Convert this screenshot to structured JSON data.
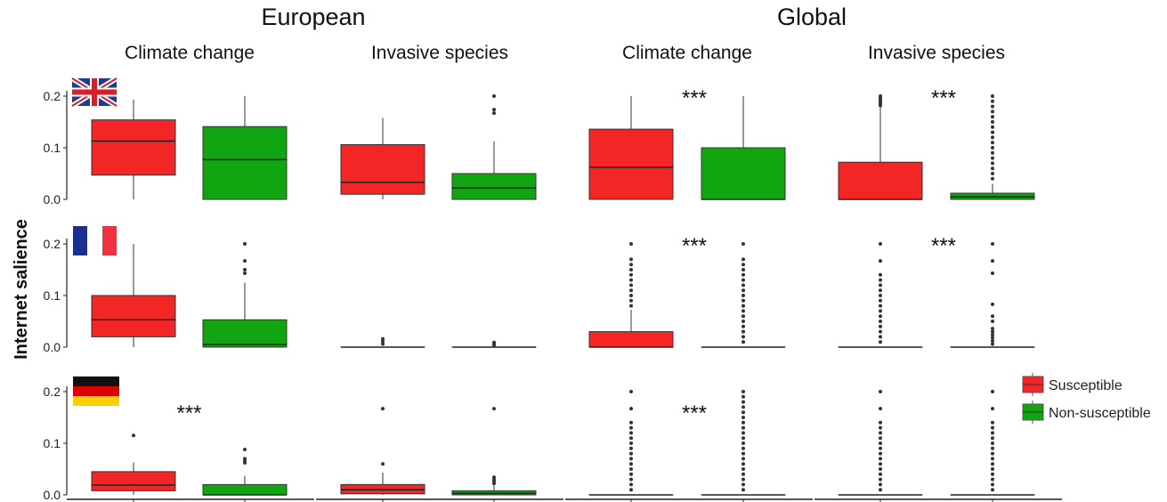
{
  "chart_data": {
    "type": "box",
    "title": "",
    "group_titles": [
      "European",
      "Global"
    ],
    "columns": [
      {
        "group": "European",
        "title": "Climate change"
      },
      {
        "group": "European",
        "title": "Invasive species"
      },
      {
        "group": "Global",
        "title": "Climate change"
      },
      {
        "group": "Global",
        "title": "Invasive species"
      }
    ],
    "rows": [
      {
        "country": "United Kingdom",
        "flag": "uk-flag-icon"
      },
      {
        "country": "France",
        "flag": "france-flag-icon"
      },
      {
        "country": "Germany",
        "flag": "germany-flag-icon"
      }
    ],
    "ylabel": "Internet salience",
    "ylim": [
      0,
      0.2
    ],
    "yticks": [
      "0.0",
      "0.1",
      "0.2"
    ],
    "legend": {
      "position": "right",
      "entries": [
        {
          "label": "Susceptible",
          "color": "#f42525"
        },
        {
          "label": "Non-susceptible",
          "color": "#11a611"
        }
      ]
    },
    "colors": {
      "Susceptible": "#f42525",
      "Non-susceptible": "#11a611"
    },
    "significance_marker": "***",
    "panels": [
      {
        "row": 0,
        "col": 0,
        "sig": false,
        "boxes": [
          {
            "series": "Susceptible",
            "q1": 0.047,
            "median": 0.113,
            "q3": 0.154,
            "whisker_low": 0.0,
            "whisker_high": 0.193,
            "outliers": []
          },
          {
            "series": "Non-susceptible",
            "q1": 0.0,
            "median": 0.077,
            "q3": 0.141,
            "whisker_low": 0.0,
            "whisker_high": 0.2,
            "outliers": []
          }
        ]
      },
      {
        "row": 0,
        "col": 1,
        "sig": false,
        "boxes": [
          {
            "series": "Susceptible",
            "q1": 0.01,
            "median": 0.033,
            "q3": 0.106,
            "whisker_low": 0.0,
            "whisker_high": 0.158,
            "outliers": []
          },
          {
            "series": "Non-susceptible",
            "q1": 0.0,
            "median": 0.022,
            "q3": 0.05,
            "whisker_low": 0.0,
            "whisker_high": 0.112,
            "outliers": [
              0.167,
              0.174,
              0.2
            ]
          }
        ]
      },
      {
        "row": 0,
        "col": 2,
        "sig": true,
        "boxes": [
          {
            "series": "Susceptible",
            "q1": 0.0,
            "median": 0.062,
            "q3": 0.136,
            "whisker_low": 0.0,
            "whisker_high": 0.2,
            "outliers": []
          },
          {
            "series": "Non-susceptible",
            "q1": 0.0,
            "median": 0.0,
            "q3": 0.1,
            "whisker_low": 0.0,
            "whisker_high": 0.2,
            "outliers": []
          }
        ]
      },
      {
        "row": 0,
        "col": 3,
        "sig": true,
        "boxes": [
          {
            "series": "Susceptible",
            "q1": 0.0,
            "median": 0.0,
            "q3": 0.072,
            "whisker_low": 0.0,
            "whisker_high": 0.18,
            "outliers": [
              0.182,
              0.186,
              0.19,
              0.194,
              0.198,
              0.2
            ]
          },
          {
            "series": "Non-susceptible",
            "q1": 0.0,
            "median": 0.005,
            "q3": 0.012,
            "whisker_low": 0.0,
            "whisker_high": 0.03,
            "outliers": [
              0.04,
              0.05,
              0.06,
              0.07,
              0.08,
              0.09,
              0.1,
              0.11,
              0.12,
              0.13,
              0.14,
              0.15,
              0.16,
              0.17,
              0.18,
              0.19,
              0.2
            ]
          }
        ]
      },
      {
        "row": 1,
        "col": 0,
        "sig": false,
        "boxes": [
          {
            "series": "Susceptible",
            "q1": 0.02,
            "median": 0.053,
            "q3": 0.1,
            "whisker_low": 0.0,
            "whisker_high": 0.2,
            "outliers": []
          },
          {
            "series": "Non-susceptible",
            "q1": 0.0,
            "median": 0.005,
            "q3": 0.053,
            "whisker_low": 0.0,
            "whisker_high": 0.125,
            "outliers": [
              0.143,
              0.15,
              0.167,
              0.2
            ]
          }
        ]
      },
      {
        "row": 1,
        "col": 1,
        "sig": false,
        "boxes": [
          {
            "series": "Susceptible",
            "q1": 0.0,
            "median": 0.0,
            "q3": 0.0,
            "whisker_low": 0.0,
            "whisker_high": 0.0,
            "outliers": [
              0.006,
              0.011,
              0.016
            ]
          },
          {
            "series": "Non-susceptible",
            "q1": 0.0,
            "median": 0.0,
            "q3": 0.0,
            "whisker_low": 0.0,
            "whisker_high": 0.0,
            "outliers": [
              0.003,
              0.006,
              0.009
            ]
          }
        ]
      },
      {
        "row": 1,
        "col": 2,
        "sig": true,
        "boxes": [
          {
            "series": "Susceptible",
            "q1": 0.0,
            "median": 0.0,
            "q3": 0.03,
            "whisker_low": 0.0,
            "whisker_high": 0.072,
            "outliers": [
              0.08,
              0.09,
              0.1,
              0.11,
              0.12,
              0.13,
              0.14,
              0.15,
              0.16,
              0.17,
              0.2
            ]
          },
          {
            "series": "Non-susceptible",
            "q1": 0.0,
            "median": 0.0,
            "q3": 0.0,
            "whisker_low": 0.0,
            "whisker_high": 0.0,
            "outliers": [
              0.01,
              0.02,
              0.03,
              0.04,
              0.05,
              0.06,
              0.07,
              0.08,
              0.09,
              0.1,
              0.11,
              0.12,
              0.13,
              0.14,
              0.15,
              0.16,
              0.17,
              0.2
            ]
          }
        ]
      },
      {
        "row": 1,
        "col": 3,
        "sig": true,
        "boxes": [
          {
            "series": "Susceptible",
            "q1": 0.0,
            "median": 0.0,
            "q3": 0.0,
            "whisker_low": 0.0,
            "whisker_high": 0.0,
            "outliers": [
              0.01,
              0.02,
              0.03,
              0.04,
              0.05,
              0.06,
              0.07,
              0.08,
              0.09,
              0.1,
              0.11,
              0.12,
              0.13,
              0.14,
              0.167,
              0.2
            ]
          },
          {
            "series": "Non-susceptible",
            "q1": 0.0,
            "median": 0.0,
            "q3": 0.0,
            "whisker_low": 0.0,
            "whisker_high": 0.0,
            "outliers": [
              0.006,
              0.012,
              0.018,
              0.024,
              0.03,
              0.036,
              0.05,
              0.06,
              0.083,
              0.143,
              0.167,
              0.2
            ]
          }
        ]
      },
      {
        "row": 2,
        "col": 0,
        "sig": true,
        "boxes": [
          {
            "series": "Susceptible",
            "q1": 0.008,
            "median": 0.019,
            "q3": 0.045,
            "whisker_low": 0.0,
            "whisker_high": 0.063,
            "outliers": [
              0.115
            ]
          },
          {
            "series": "Non-susceptible",
            "q1": 0.0,
            "median": 0.0,
            "q3": 0.02,
            "whisker_low": 0.0,
            "whisker_high": 0.037,
            "outliers": [
              0.062,
              0.066,
              0.07,
              0.088
            ]
          }
        ]
      },
      {
        "row": 2,
        "col": 1,
        "sig": false,
        "boxes": [
          {
            "series": "Susceptible",
            "q1": 0.002,
            "median": 0.01,
            "q3": 0.02,
            "whisker_low": 0.0,
            "whisker_high": 0.043,
            "outliers": [
              0.06,
              0.167
            ]
          },
          {
            "series": "Non-susceptible",
            "q1": 0.0,
            "median": 0.003,
            "q3": 0.008,
            "whisker_low": 0.0,
            "whisker_high": 0.018,
            "outliers": [
              0.022,
              0.026,
              0.03,
              0.034,
              0.167
            ]
          }
        ]
      },
      {
        "row": 2,
        "col": 2,
        "sig": true,
        "boxes": [
          {
            "series": "Susceptible",
            "q1": 0.0,
            "median": 0.0,
            "q3": 0.0,
            "whisker_low": 0.0,
            "whisker_high": 0.0,
            "outliers": [
              0.01,
              0.02,
              0.03,
              0.04,
              0.05,
              0.06,
              0.07,
              0.08,
              0.09,
              0.1,
              0.11,
              0.12,
              0.13,
              0.14,
              0.167,
              0.2
            ]
          },
          {
            "series": "Non-susceptible",
            "q1": 0.0,
            "median": 0.0,
            "q3": 0.0,
            "whisker_low": 0.0,
            "whisker_high": 0.0,
            "outliers": [
              0.01,
              0.02,
              0.03,
              0.04,
              0.05,
              0.06,
              0.07,
              0.08,
              0.09,
              0.1,
              0.11,
              0.12,
              0.13,
              0.14,
              0.15,
              0.16,
              0.17,
              0.18,
              0.19,
              0.2
            ]
          }
        ]
      },
      {
        "row": 2,
        "col": 3,
        "sig": false,
        "boxes": [
          {
            "series": "Susceptible",
            "q1": 0.0,
            "median": 0.0,
            "q3": 0.0,
            "whisker_low": 0.0,
            "whisker_high": 0.0,
            "outliers": [
              0.01,
              0.02,
              0.03,
              0.04,
              0.05,
              0.06,
              0.07,
              0.08,
              0.09,
              0.1,
              0.11,
              0.12,
              0.13,
              0.14,
              0.167,
              0.2
            ]
          },
          {
            "series": "Non-susceptible",
            "q1": 0.0,
            "median": 0.0,
            "q3": 0.0,
            "whisker_low": 0.0,
            "whisker_high": 0.0,
            "outliers": [
              0.01,
              0.02,
              0.03,
              0.04,
              0.05,
              0.06,
              0.07,
              0.08,
              0.09,
              0.1,
              0.11,
              0.12,
              0.13,
              0.14,
              0.167,
              0.2
            ]
          }
        ]
      }
    ]
  }
}
